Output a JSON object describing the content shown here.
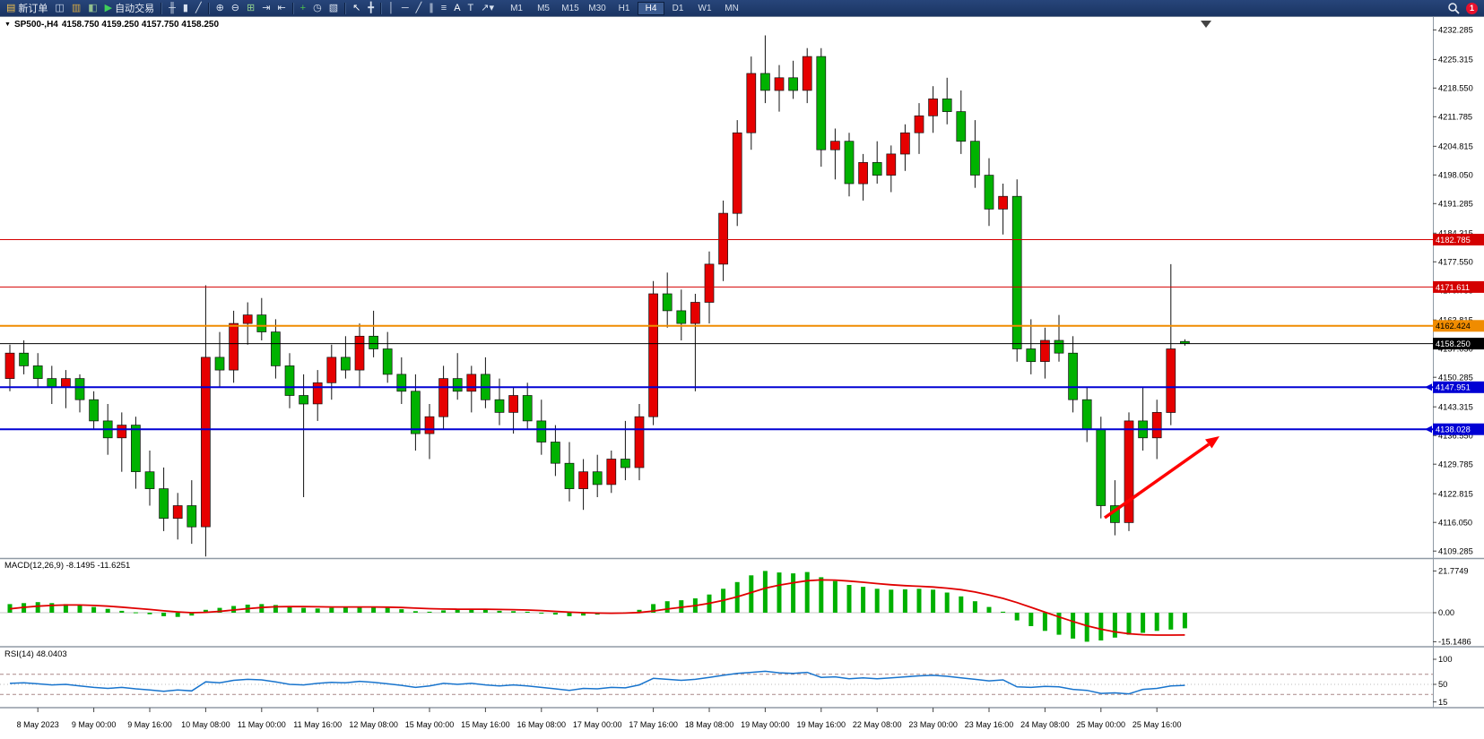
{
  "toolbar": {
    "new_order_label": "新订单",
    "auto_trading_label": "自动交易",
    "buttons": [
      {
        "name": "new-order-button",
        "icon": "order-ticket-icon",
        "glyph": "▤",
        "color": "#F2C14E",
        "label": "新订单"
      },
      {
        "name": "chart-window-button",
        "icon": "chart-window-icon",
        "glyph": "◫",
        "color": "#C9D6EA"
      },
      {
        "name": "profiles-button",
        "icon": "profiles-icon",
        "glyph": "▥",
        "color": "#D3A845"
      },
      {
        "name": "market-watch-button",
        "icon": "market-watch-icon",
        "glyph": "◧",
        "color": "#93C08F"
      },
      {
        "name": "auto-trading-button",
        "icon": "auto-trading-play-icon",
        "glyph": "▶",
        "color": "#3FCF5A",
        "label": "自动交易"
      },
      {
        "sep": true
      },
      {
        "name": "bar-chart-button",
        "icon": "bar-chart-icon",
        "glyph": "╫",
        "color": "#D9E2F0"
      },
      {
        "name": "candlestick-chart-button",
        "icon": "candlestick-icon",
        "glyph": "▮",
        "color": "#D9E2F0"
      },
      {
        "name": "line-chart-button",
        "icon": "line-chart-icon",
        "glyph": "╱",
        "color": "#D9E2F0"
      },
      {
        "sep": true
      },
      {
        "name": "zoom-in-button",
        "icon": "zoom-in-icon",
        "glyph": "⊕",
        "color": "#D9E2F0"
      },
      {
        "name": "zoom-out-button",
        "icon": "zoom-out-icon",
        "glyph": "⊖",
        "color": "#D9E2F0"
      },
      {
        "name": "tile-windows-button",
        "icon": "tile-windows-icon",
        "glyph": "⊞",
        "color": "#8FD08F"
      },
      {
        "name": "auto-scroll-button",
        "icon": "auto-scroll-icon",
        "glyph": "⇥",
        "color": "#D9E2F0"
      },
      {
        "name": "chart-shift-button",
        "icon": "chart-shift-icon",
        "glyph": "⇤",
        "color": "#D9E2F0"
      },
      {
        "sep": true
      },
      {
        "name": "add-indicator-button",
        "icon": "add-indicator-icon",
        "glyph": "+",
        "color": "#4CC24C"
      },
      {
        "name": "periods-button",
        "icon": "periods-clock-icon",
        "glyph": "◷",
        "color": "#D9E2F0"
      },
      {
        "name": "templates-button",
        "icon": "templates-icon",
        "glyph": "▧",
        "color": "#D9E2F0"
      },
      {
        "sep": true
      },
      {
        "name": "cursor-button",
        "icon": "cursor-icon",
        "glyph": "↖",
        "color": "#FFFFFF"
      },
      {
        "name": "crosshair-button",
        "icon": "crosshair-icon",
        "glyph": "╋",
        "color": "#D9E2F0"
      },
      {
        "sep": true
      },
      {
        "name": "vertical-line-button",
        "icon": "vertical-line-icon",
        "glyph": "│",
        "color": "#D9E2F0"
      },
      {
        "name": "horizontal-line-button",
        "icon": "horizontal-line-icon",
        "glyph": "─",
        "color": "#D9E2F0"
      },
      {
        "name": "trendline-button",
        "icon": "trendline-icon",
        "glyph": "╱",
        "color": "#D9E2F0"
      },
      {
        "name": "channel-button",
        "icon": "channel-icon",
        "glyph": "∥",
        "color": "#D9E2F0"
      },
      {
        "name": "fibonacci-button",
        "icon": "fibonacci-icon",
        "glyph": "≡",
        "color": "#D9E2F0"
      },
      {
        "name": "text-button",
        "icon": "text-a-icon",
        "glyph": "A",
        "color": "#FFFFFF"
      },
      {
        "name": "text-label-button",
        "icon": "text-label-icon",
        "glyph": "T",
        "color": "#D9E2F0"
      },
      {
        "name": "arrows-button",
        "icon": "arrows-dropdown-icon",
        "glyph": "↗▾",
        "color": "#D9E2F0"
      }
    ],
    "timeframes": [
      "M1",
      "M5",
      "M15",
      "M30",
      "H1",
      "H4",
      "D1",
      "W1",
      "MN"
    ],
    "active_timeframe": "H4",
    "notification_badge": "1"
  },
  "chart_header": {
    "symbol": "SP500-,H4",
    "ohlc": "4158.750 4159.250 4157.750 4158.250"
  },
  "indicators": {
    "macd": {
      "title": "MACD(12,26,9) -8.1495 -11.6251",
      "axis_labels": [
        "21.7749",
        "0.00",
        "-15.1486"
      ]
    },
    "rsi": {
      "title": "RSI(14) 48.0403",
      "axis_labels": [
        "100",
        "50",
        "15"
      ]
    }
  },
  "price_axis": {
    "labels": [
      "4232.285",
      "4225.315",
      "4218.550",
      "4211.785",
      "4204.815",
      "4198.050",
      "4191.285",
      "4184.315",
      "4177.550",
      "4170.785",
      "4163.815",
      "4157.050",
      "4150.285",
      "4143.315",
      "4136.550",
      "4129.785",
      "4122.815",
      "4116.050",
      "4109.285"
    ]
  },
  "price_lines": [
    {
      "value": 4182.785,
      "label": "4182.785",
      "color": "#D40000",
      "bg": "#D40000",
      "fg": "#FFFFFF",
      "width": 1,
      "arrow": false
    },
    {
      "value": 4171.611,
      "label": "4171.611",
      "color": "#D40000",
      "bg": "#D40000",
      "fg": "#FFFFFF",
      "width": 1,
      "arrow": false
    },
    {
      "value": 4162.424,
      "label": "4162.424",
      "color": "#F08C00",
      "bg": "#F08C00",
      "fg": "#000000",
      "width": 2,
      "arrow": false
    },
    {
      "value": 4158.25,
      "label": "4158.250",
      "color": "#000000",
      "bg": "#000000",
      "fg": "#FFFFFF",
      "width": 1,
      "arrow": false
    },
    {
      "value": 4147.951,
      "label": "4147.951",
      "color": "#0000D4",
      "bg": "#0000D4",
      "fg": "#FFFFFF",
      "width": 2,
      "arrow": true
    },
    {
      "value": 4138.028,
      "label": "4138.028",
      "color": "#0000D4",
      "bg": "#0000D4",
      "fg": "#FFFFFF",
      "width": 2,
      "arrow": true
    }
  ],
  "time_axis": {
    "labels": [
      "8 May 2023",
      "9 May 00:00",
      "9 May 16:00",
      "10 May 08:00",
      "11 May 00:00",
      "11 May 16:00",
      "12 May 08:00",
      "15 May 00:00",
      "15 May 16:00",
      "16 May 08:00",
      "17 May 00:00",
      "17 May 16:00",
      "18 May 08:00",
      "19 May 00:00",
      "19 May 16:00",
      "22 May 08:00",
      "23 May 00:00",
      "23 May 16:00",
      "24 May 08:00",
      "25 May 00:00",
      "25 May 16:00"
    ]
  },
  "annotations": {
    "trend_arrow": {
      "color": "#FF0000",
      "direction": "up-right"
    }
  },
  "chart_data": [
    {
      "type": "candlestick",
      "symbol": "SP500-",
      "timeframe": "H4",
      "up_color": "#E60000",
      "down_color": "#00B200",
      "note": "Chinese convention: red = up, green = down",
      "ylim": [
        4106,
        4234
      ],
      "ohlc": [
        [
          4150,
          4158,
          4147,
          4156
        ],
        [
          4156,
          4159,
          4151,
          4153
        ],
        [
          4153,
          4156,
          4148,
          4150
        ],
        [
          4150,
          4153,
          4144,
          4148
        ],
        [
          4148,
          4152,
          4143,
          4150
        ],
        [
          4150,
          4151,
          4142,
          4145
        ],
        [
          4145,
          4147,
          4138,
          4140
        ],
        [
          4140,
          4144,
          4132,
          4136
        ],
        [
          4136,
          4142,
          4128,
          4139
        ],
        [
          4139,
          4141,
          4124,
          4128
        ],
        [
          4128,
          4133,
          4120,
          4124
        ],
        [
          4124,
          4129,
          4114,
          4117
        ],
        [
          4117,
          4123,
          4112,
          4120
        ],
        [
          4120,
          4126,
          4111,
          4115
        ],
        [
          4115,
          4172,
          4108,
          4155
        ],
        [
          4155,
          4161,
          4148,
          4152
        ],
        [
          4152,
          4166,
          4149,
          4163
        ],
        [
          4163,
          4168,
          4158,
          4165
        ],
        [
          4165,
          4169,
          4159,
          4161
        ],
        [
          4161,
          4164,
          4150,
          4153
        ],
        [
          4153,
          4156,
          4143,
          4146
        ],
        [
          4146,
          4151,
          4122,
          4144
        ],
        [
          4144,
          4152,
          4140,
          4149
        ],
        [
          4149,
          4158,
          4145,
          4155
        ],
        [
          4155,
          4160,
          4150,
          4152
        ],
        [
          4152,
          4163,
          4148,
          4160
        ],
        [
          4160,
          4166,
          4155,
          4157
        ],
        [
          4157,
          4161,
          4149,
          4151
        ],
        [
          4151,
          4155,
          4144,
          4147
        ],
        [
          4147,
          4151,
          4133,
          4137
        ],
        [
          4137,
          4144,
          4131,
          4141
        ],
        [
          4141,
          4153,
          4138,
          4150
        ],
        [
          4150,
          4156,
          4145,
          4147
        ],
        [
          4147,
          4153,
          4142,
          4151
        ],
        [
          4151,
          4155,
          4143,
          4145
        ],
        [
          4145,
          4150,
          4139,
          4142
        ],
        [
          4142,
          4148,
          4137,
          4146
        ],
        [
          4146,
          4149,
          4138,
          4140
        ],
        [
          4140,
          4145,
          4132,
          4135
        ],
        [
          4135,
          4139,
          4127,
          4130
        ],
        [
          4130,
          4135,
          4121,
          4124
        ],
        [
          4124,
          4131,
          4119,
          4128
        ],
        [
          4128,
          4132,
          4122,
          4125
        ],
        [
          4125,
          4133,
          4123,
          4131
        ],
        [
          4131,
          4140,
          4126,
          4129
        ],
        [
          4129,
          4144,
          4126,
          4141
        ],
        [
          4141,
          4173,
          4139,
          4170
        ],
        [
          4170,
          4175,
          4162,
          4166
        ],
        [
          4166,
          4171,
          4159,
          4163
        ],
        [
          4163,
          4170,
          4147,
          4168
        ],
        [
          4168,
          4180,
          4163,
          4177
        ],
        [
          4177,
          4192,
          4173,
          4189
        ],
        [
          4189,
          4211,
          4186,
          4208
        ],
        [
          4208,
          4226,
          4204,
          4222
        ],
        [
          4222,
          4231,
          4215,
          4218
        ],
        [
          4218,
          4224,
          4213,
          4221
        ],
        [
          4221,
          4225,
          4216,
          4218
        ],
        [
          4218,
          4228,
          4215,
          4226
        ],
        [
          4226,
          4228,
          4200,
          4204
        ],
        [
          4204,
          4209,
          4197,
          4206
        ],
        [
          4206,
          4208,
          4193,
          4196
        ],
        [
          4196,
          4203,
          4192,
          4201
        ],
        [
          4201,
          4206,
          4196,
          4198
        ],
        [
          4198,
          4205,
          4194,
          4203
        ],
        [
          4203,
          4210,
          4199,
          4208
        ],
        [
          4208,
          4215,
          4203,
          4212
        ],
        [
          4212,
          4219,
          4208,
          4216
        ],
        [
          4216,
          4221,
          4210,
          4213
        ],
        [
          4213,
          4218,
          4203,
          4206
        ],
        [
          4206,
          4211,
          4195,
          4198
        ],
        [
          4198,
          4202,
          4186,
          4190
        ],
        [
          4190,
          4196,
          4184,
          4193
        ],
        [
          4193,
          4197,
          4154,
          4157
        ],
        [
          4157,
          4164,
          4151,
          4154
        ],
        [
          4154,
          4162,
          4150,
          4159
        ],
        [
          4159,
          4165,
          4154,
          4156
        ],
        [
          4156,
          4160,
          4142,
          4145
        ],
        [
          4145,
          4148,
          4135,
          4138
        ],
        [
          4138,
          4141,
          4117,
          4120
        ],
        [
          4120,
          4126,
          4113,
          4116
        ],
        [
          4116,
          4142,
          4114,
          4140
        ],
        [
          4140,
          4148,
          4133,
          4136
        ],
        [
          4136,
          4145,
          4131,
          4142
        ],
        [
          4142,
          4177,
          4139,
          4157
        ],
        [
          4158.75,
          4159.25,
          4157.75,
          4158.25
        ]
      ]
    },
    {
      "type": "bar",
      "name": "MACD(12,26,9) histogram",
      "bar_color": "#00B000",
      "ylim": [
        -17,
        23
      ],
      "last_value": -8.1495,
      "values": [
        4.5,
        5.0,
        5.5,
        5.0,
        4.5,
        4.0,
        3.0,
        2.0,
        1.0,
        0.2,
        -0.8,
        -1.8,
        -2.2,
        -1.5,
        1.5,
        2.5,
        3.5,
        4.2,
        4.5,
        4.0,
        3.2,
        2.5,
        2.2,
        2.5,
        2.8,
        3.2,
        3.0,
        2.5,
        1.8,
        0.8,
        0.5,
        1.2,
        1.5,
        1.6,
        1.4,
        1.0,
        0.8,
        0.5,
        -0.2,
        -1.0,
        -1.8,
        -1.5,
        -1.0,
        -0.5,
        0.2,
        1.5,
        4.5,
        6.0,
        6.5,
        7.5,
        9.5,
        12.5,
        16.0,
        19.5,
        21.77,
        21.0,
        20.5,
        21.2,
        18.5,
        16.5,
        14.5,
        13.5,
        12.5,
        12.0,
        12.2,
        12.5,
        12.0,
        10.5,
        8.5,
        6.0,
        3.0,
        0.5,
        -4.0,
        -7.0,
        -9.5,
        -11.5,
        -13.5,
        -15.15,
        -14.5,
        -13.0,
        -11.5,
        -10.5,
        -9.5,
        -8.8,
        -8.15
      ],
      "signal": {
        "name": "signal",
        "color": "#E00000",
        "last_value": -11.6251,
        "values": [
          2.0,
          2.8,
          3.4,
          3.8,
          4.0,
          4.0,
          3.8,
          3.4,
          2.9,
          2.3,
          1.7,
          1.0,
          0.4,
          0.0,
          0.2,
          0.7,
          1.4,
          2.1,
          2.7,
          3.1,
          3.2,
          3.2,
          3.1,
          3.0,
          3.0,
          3.0,
          3.0,
          2.9,
          2.7,
          2.4,
          2.1,
          1.9,
          1.8,
          1.8,
          1.8,
          1.7,
          1.6,
          1.4,
          1.1,
          0.7,
          0.3,
          0.0,
          -0.2,
          -0.3,
          -0.2,
          0.1,
          0.9,
          1.9,
          2.8,
          3.7,
          4.9,
          6.4,
          8.3,
          10.5,
          12.8,
          14.4,
          15.6,
          16.7,
          17.1,
          17.0,
          16.5,
          15.9,
          15.2,
          14.6,
          14.1,
          13.8,
          13.4,
          12.8,
          12.0,
          10.8,
          9.2,
          7.5,
          5.3,
          2.8,
          0.3,
          -2.2,
          -4.6,
          -6.8,
          -8.6,
          -10.0,
          -11.0,
          -11.5,
          -11.7,
          -11.7,
          -11.63
        ]
      }
    },
    {
      "type": "line",
      "name": "RSI(14)",
      "color": "#1874CD",
      "ylim": [
        0,
        100
      ],
      "levels": [
        70,
        50,
        30
      ],
      "last_value": 48.0403,
      "values": [
        52,
        53,
        51,
        49,
        50,
        47,
        44,
        42,
        44,
        41,
        39,
        36,
        39,
        37,
        55,
        53,
        58,
        60,
        59,
        55,
        50,
        49,
        52,
        54,
        53,
        56,
        54,
        51,
        48,
        44,
        47,
        52,
        50,
        52,
        49,
        47,
        49,
        47,
        44,
        41,
        38,
        42,
        41,
        44,
        43,
        49,
        62,
        60,
        58,
        60,
        64,
        68,
        72,
        74,
        76,
        73,
        72,
        74,
        64,
        65,
        61,
        63,
        61,
        63,
        65,
        67,
        68,
        66,
        63,
        60,
        57,
        59,
        45,
        44,
        46,
        45,
        40,
        38,
        32,
        33,
        31,
        40,
        42,
        47,
        48.04
      ]
    }
  ]
}
